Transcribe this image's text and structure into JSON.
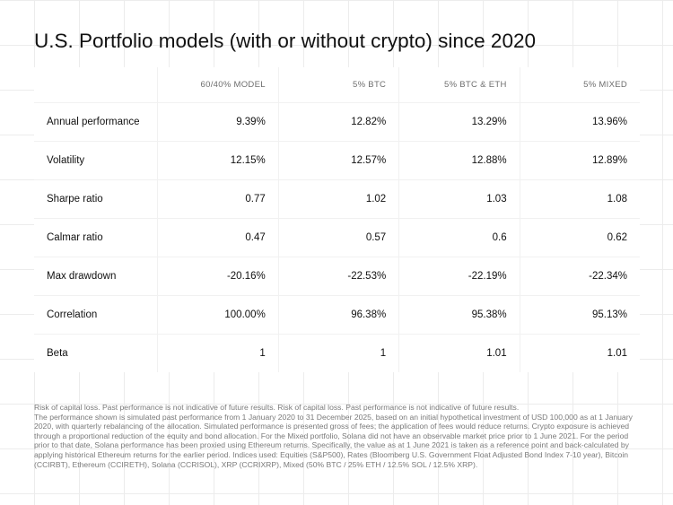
{
  "title": "U.S. Portfolio models (with or without crypto) since 2020",
  "table": {
    "columns": [
      "",
      "60/40% MODEL",
      "5% BTC",
      "5% BTC & ETH",
      "5% MIXED"
    ],
    "rows": [
      {
        "label": "Annual performance",
        "values": [
          "9.39%",
          "12.82%",
          "13.29%",
          "13.96%"
        ]
      },
      {
        "label": "Volatility",
        "values": [
          "12.15%",
          "12.57%",
          "12.88%",
          "12.89%"
        ]
      },
      {
        "label": "Sharpe ratio",
        "values": [
          "0.77",
          "1.02",
          "1.03",
          "1.08"
        ]
      },
      {
        "label": "Calmar ratio",
        "values": [
          "0.47",
          "0.57",
          "0.6",
          "0.62"
        ]
      },
      {
        "label": "Max drawdown",
        "values": [
          "-20.16%",
          "-22.53%",
          "-22.19%",
          "-22.34%"
        ]
      },
      {
        "label": "Correlation",
        "values": [
          "100.00%",
          "96.38%",
          "95.38%",
          "95.13%"
        ]
      },
      {
        "label": "Beta",
        "values": [
          "1",
          "1",
          "1.01",
          "1.01"
        ]
      }
    ]
  },
  "footnote": {
    "line1": "Risk of capital loss. Past performance is not indicative of future results. Risk of capital loss. Past performance is not indicative of future results.",
    "line2": "The performance shown is simulated past performance from 1 January 2020 to 31 December 2025, based on an initial hypothetical investment of USD 100,000 as at 1 January 2020, with quarterly rebalancing of the allocation. Simulated performance is presented gross of fees; the application of fees would reduce returns. Crypto exposure is achieved through a proportional reduction of the equity and bond allocation. For the Mixed portfolio, Solana did not have an observable market price prior to 1 June 2021. For the period prior to that date, Solana performance has been proxied using Ethereum returns. Specifically, the value as at 1 June 2021 is taken as a reference point and back-calculated by applying historical Ethereum returns for the earlier period. Indices used: Equities (S&P500), Rates (Bloomberg U.S. Government Float Adjusted Bond Index 7-10 year), Bitcoin (CCIRBT), Ethereum (CCIRETH), Solana (CCRISOL), XRP (CCRIXRP), Mixed (50% BTC / 25% ETH / 12.5% SOL / 12.5% XRP)."
  }
}
